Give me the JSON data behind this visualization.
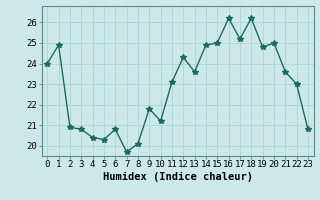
{
  "x": [
    0,
    1,
    2,
    3,
    4,
    5,
    6,
    7,
    8,
    9,
    10,
    11,
    12,
    13,
    14,
    15,
    16,
    17,
    18,
    19,
    20,
    21,
    22,
    23
  ],
  "y": [
    24.0,
    24.9,
    20.9,
    20.8,
    20.4,
    20.3,
    20.8,
    19.7,
    20.1,
    21.8,
    21.2,
    23.1,
    24.3,
    23.6,
    24.9,
    25.0,
    26.2,
    25.2,
    26.2,
    24.8,
    25.0,
    23.6,
    23.0,
    20.8
  ],
  "line_color": "#1a6b5e",
  "marker": "*",
  "marker_size": 4,
  "bg_color": "#cce9e8",
  "grid_color": "#aad4d2",
  "xlabel": "Humidex (Indice chaleur)",
  "ylim": [
    19.5,
    26.8
  ],
  "yticks": [
    20,
    21,
    22,
    23,
    24,
    25,
    26
  ],
  "xtick_labels": [
    "0",
    "1",
    "2",
    "3",
    "4",
    "5",
    "6",
    "7",
    "8",
    "9",
    "10",
    "11",
    "12",
    "13",
    "14",
    "15",
    "16",
    "17",
    "18",
    "19",
    "20",
    "21",
    "22",
    "23"
  ],
  "xlabel_fontsize": 7.5,
  "tick_fontsize": 6.5,
  "linewidth": 1.0
}
